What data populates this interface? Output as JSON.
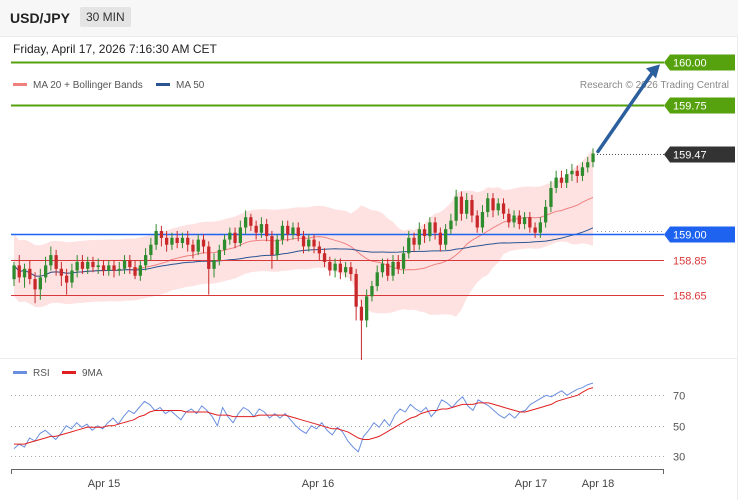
{
  "header": {
    "symbol": "USD/JPY",
    "timeframe": "30 MIN",
    "datetime": "Friday, April 17, 2026 7:16:30 AM CET"
  },
  "legend": {
    "ma20_label": "MA 20 + Bollinger Bands",
    "ma50_label": "MA 50",
    "credit": "Research © 2026 Trading Central"
  },
  "rsi_legend": {
    "rsi_label": "RSI",
    "ma9_label": "9MA"
  },
  "colors": {
    "bull": "#2e8b2e",
    "bear": "#c8282a",
    "target": "#56a20e",
    "pivot": "#1e62f0",
    "support": "#d9383a",
    "current": "#333333",
    "ma20": "#f08080",
    "band_fill": "#fdd8d8",
    "ma50": "#2a5592",
    "rsi": "#6b8fe0",
    "rsi_ma": "#e02020",
    "arrow": "#2c5f9e"
  },
  "chart_data": [
    {
      "type": "candlestick",
      "title": "",
      "ylim": [
        158.27,
        160.13
      ],
      "x_ticks": [
        "Apr 15",
        "Apr 16",
        "Apr 17",
        "Apr 18"
      ],
      "levels": [
        {
          "value": 160.0,
          "label": "160.00",
          "kind": "target"
        },
        {
          "value": 159.75,
          "label": "159.75",
          "kind": "target"
        },
        {
          "value": 159.47,
          "label": "159.47",
          "kind": "current"
        },
        {
          "value": 159.0,
          "label": "159.00",
          "kind": "pivot"
        },
        {
          "value": 158.85,
          "label": "158.85",
          "kind": "support"
        },
        {
          "value": 158.65,
          "label": "158.65",
          "kind": "support"
        }
      ],
      "series": [
        {
          "name": "MA 20 + Bollinger Bands"
        },
        {
          "name": "MA 50"
        }
      ],
      "candles": [
        [
          158.74,
          158.82,
          158.7,
          158.84
        ],
        [
          158.82,
          158.75,
          158.72,
          158.88
        ],
        [
          158.75,
          158.8,
          158.69,
          158.83
        ],
        [
          158.8,
          158.74,
          158.71,
          158.85
        ],
        [
          158.74,
          158.68,
          158.6,
          158.78
        ],
        [
          158.68,
          158.75,
          158.62,
          158.8
        ],
        [
          158.75,
          158.82,
          158.72,
          158.87
        ],
        [
          158.82,
          158.88,
          158.79,
          158.93
        ],
        [
          158.88,
          158.8,
          158.76,
          158.91
        ],
        [
          158.8,
          158.76,
          158.7,
          158.84
        ],
        [
          158.76,
          158.72,
          158.65,
          158.8
        ],
        [
          158.72,
          158.79,
          158.69,
          158.83
        ],
        [
          158.79,
          158.84,
          158.75,
          158.88
        ],
        [
          158.84,
          158.8,
          158.77,
          158.88
        ],
        [
          158.8,
          158.84,
          158.77,
          158.87
        ],
        [
          158.84,
          158.81,
          158.78,
          158.87
        ],
        [
          158.81,
          158.82,
          158.77,
          158.86
        ],
        [
          158.82,
          158.79,
          158.76,
          158.85
        ],
        [
          158.79,
          158.82,
          158.76,
          158.85
        ],
        [
          158.82,
          158.79,
          158.75,
          158.85
        ],
        [
          158.79,
          158.8,
          158.76,
          158.84
        ],
        [
          158.8,
          158.85,
          158.77,
          158.88
        ],
        [
          158.85,
          158.81,
          158.77,
          158.88
        ],
        [
          158.81,
          158.76,
          158.74,
          158.85
        ],
        [
          158.76,
          158.82,
          158.73,
          158.85
        ],
        [
          158.82,
          158.88,
          158.79,
          158.92
        ],
        [
          158.88,
          158.94,
          158.85,
          158.98
        ],
        [
          158.94,
          159.02,
          158.91,
          159.06
        ],
        [
          159.02,
          158.98,
          158.93,
          159.05
        ],
        [
          158.98,
          158.94,
          158.9,
          159.02
        ],
        [
          158.94,
          158.98,
          158.91,
          159.01
        ],
        [
          158.98,
          158.95,
          158.92,
          159.02
        ],
        [
          158.95,
          158.98,
          158.92,
          159.01
        ],
        [
          158.98,
          158.94,
          158.9,
          159.02
        ],
        [
          158.94,
          158.9,
          158.86,
          158.97
        ],
        [
          158.9,
          158.97,
          158.88,
          159.0
        ],
        [
          158.97,
          158.93,
          158.89,
          159.0
        ],
        [
          158.93,
          158.8,
          158.65,
          158.96
        ],
        [
          158.8,
          158.85,
          158.75,
          158.89
        ],
        [
          158.85,
          158.91,
          158.82,
          158.94
        ],
        [
          158.91,
          158.97,
          158.88,
          159.0
        ],
        [
          158.97,
          159.01,
          158.94,
          159.04
        ],
        [
          159.01,
          158.95,
          158.92,
          159.04
        ],
        [
          158.95,
          159.04,
          158.93,
          159.08
        ],
        [
          159.04,
          159.1,
          159.0,
          159.14
        ],
        [
          159.1,
          159.05,
          159.02,
          159.12
        ],
        [
          159.05,
          159.01,
          158.97,
          159.08
        ],
        [
          159.01,
          159.06,
          158.98,
          159.1
        ],
        [
          159.06,
          158.99,
          158.96,
          159.09
        ],
        [
          158.99,
          158.88,
          158.8,
          159.02
        ],
        [
          158.88,
          158.97,
          158.85,
          159.0
        ],
        [
          158.97,
          159.05,
          158.94,
          159.08
        ],
        [
          159.05,
          159.0,
          158.96,
          159.08
        ],
        [
          159.0,
          159.04,
          158.97,
          159.07
        ],
        [
          159.04,
          158.99,
          158.96,
          159.07
        ],
        [
          158.99,
          158.93,
          158.89,
          159.02
        ],
        [
          158.93,
          158.97,
          158.9,
          159.0
        ],
        [
          158.97,
          158.93,
          158.89,
          159.0
        ],
        [
          158.93,
          158.89,
          158.85,
          158.96
        ],
        [
          158.89,
          158.84,
          158.81,
          158.92
        ],
        [
          158.84,
          158.79,
          158.76,
          158.87
        ],
        [
          158.79,
          158.83,
          158.75,
          158.86
        ],
        [
          158.83,
          158.78,
          158.74,
          158.86
        ],
        [
          158.78,
          158.81,
          158.75,
          158.84
        ],
        [
          158.81,
          158.77,
          158.73,
          158.84
        ],
        [
          158.77,
          158.58,
          158.5,
          158.8
        ],
        [
          158.58,
          158.5,
          158.27,
          158.62
        ],
        [
          158.5,
          158.64,
          158.46,
          158.68
        ],
        [
          158.64,
          158.7,
          158.61,
          158.73
        ],
        [
          158.7,
          158.78,
          158.67,
          158.82
        ],
        [
          158.78,
          158.83,
          158.75,
          158.86
        ],
        [
          158.83,
          158.76,
          158.73,
          158.86
        ],
        [
          158.76,
          158.84,
          158.73,
          158.88
        ],
        [
          158.84,
          158.8,
          158.77,
          158.88
        ],
        [
          158.8,
          158.89,
          158.77,
          158.93
        ],
        [
          158.89,
          158.98,
          158.86,
          159.02
        ],
        [
          158.98,
          158.94,
          158.9,
          159.01
        ],
        [
          158.94,
          159.03,
          158.91,
          159.07
        ],
        [
          159.03,
          158.99,
          158.95,
          159.06
        ],
        [
          158.99,
          159.07,
          158.96,
          159.1
        ],
        [
          159.07,
          159.01,
          158.97,
          159.1
        ],
        [
          159.01,
          158.94,
          158.9,
          159.04
        ],
        [
          158.94,
          159.03,
          158.91,
          159.06
        ],
        [
          159.03,
          159.08,
          159.0,
          159.12
        ],
        [
          159.08,
          159.22,
          159.05,
          159.26
        ],
        [
          159.22,
          159.12,
          159.08,
          159.25
        ],
        [
          159.12,
          159.2,
          159.09,
          159.24
        ],
        [
          159.2,
          159.11,
          159.07,
          159.23
        ],
        [
          159.11,
          159.04,
          159.01,
          159.14
        ],
        [
          159.04,
          159.13,
          159.01,
          159.17
        ],
        [
          159.13,
          159.21,
          159.1,
          159.24
        ],
        [
          159.21,
          159.14,
          159.1,
          159.24
        ],
        [
          159.14,
          159.18,
          159.11,
          159.21
        ],
        [
          159.18,
          159.12,
          159.09,
          159.21
        ],
        [
          159.12,
          159.07,
          159.04,
          159.15
        ],
        [
          159.07,
          159.11,
          159.04,
          159.14
        ],
        [
          159.11,
          159.06,
          159.03,
          159.14
        ],
        [
          159.06,
          159.1,
          159.03,
          159.13
        ],
        [
          159.1,
          159.04,
          159.01,
          159.13
        ],
        [
          159.04,
          159.01,
          158.98,
          159.07
        ],
        [
          159.01,
          159.07,
          158.98,
          159.1
        ],
        [
          159.07,
          159.16,
          159.04,
          159.2
        ],
        [
          159.16,
          159.27,
          159.13,
          159.31
        ],
        [
          159.27,
          159.33,
          159.24,
          159.37
        ],
        [
          159.33,
          159.3,
          159.27,
          159.37
        ],
        [
          159.3,
          159.35,
          159.27,
          159.38
        ],
        [
          159.35,
          159.37,
          159.31,
          159.41
        ],
        [
          159.37,
          159.34,
          159.3,
          159.4
        ],
        [
          159.34,
          159.39,
          159.31,
          159.42
        ],
        [
          159.39,
          159.42,
          159.36,
          159.45
        ],
        [
          159.42,
          159.47,
          159.39,
          159.5
        ]
      ]
    },
    {
      "type": "line",
      "title": "",
      "ylim": [
        21,
        80
      ],
      "y_ticks": [
        30,
        50,
        70
      ],
      "series": [
        {
          "name": "RSI",
          "values": [
            35,
            38,
            36,
            42,
            40,
            45,
            47,
            44,
            41,
            45,
            50,
            48,
            52,
            49,
            51,
            47,
            50,
            48,
            52,
            55,
            51,
            56,
            60,
            58,
            62,
            66,
            64,
            60,
            62,
            58,
            60,
            57,
            54,
            59,
            61,
            58,
            63,
            60,
            56,
            50,
            62,
            56,
            52,
            58,
            62,
            60,
            56,
            61,
            59,
            55,
            58,
            55,
            58,
            54,
            50,
            47,
            45,
            50,
            48,
            52,
            47,
            44,
            49,
            46,
            40,
            36,
            33,
            43,
            47,
            52,
            49,
            54,
            50,
            57,
            61,
            59,
            64,
            61,
            59,
            62,
            56,
            60,
            67,
            65,
            62,
            66,
            69,
            63,
            60,
            67,
            65,
            63,
            60,
            57,
            55,
            58,
            55,
            59,
            60,
            64,
            66,
            68,
            70,
            69,
            71,
            73,
            70,
            72,
            74,
            75,
            77,
            78
          ]
        },
        {
          "name": "9MA",
          "values": [
            38,
            38,
            38,
            39,
            40,
            41,
            42,
            43,
            43,
            44,
            45,
            46,
            47,
            48,
            49,
            49,
            49,
            49,
            50,
            50,
            51,
            52,
            53,
            54,
            56,
            57,
            59,
            60,
            60,
            60,
            60,
            60,
            60,
            59,
            59,
            59,
            59,
            59,
            58,
            57,
            57,
            57,
            56,
            56,
            56,
            56,
            56,
            57,
            57,
            57,
            57,
            57,
            57,
            56,
            55,
            54,
            53,
            52,
            51,
            50,
            49,
            48,
            48,
            47,
            46,
            44,
            42,
            41,
            41,
            42,
            43,
            45,
            47,
            49,
            51,
            53,
            55,
            56,
            58,
            59,
            60,
            60,
            61,
            61,
            62,
            63,
            64,
            64,
            64,
            65,
            65,
            65,
            64,
            63,
            62,
            61,
            60,
            59,
            59,
            60,
            61,
            62,
            63,
            64,
            66,
            67,
            68,
            69,
            70,
            72,
            74,
            75
          ]
        }
      ]
    }
  ]
}
